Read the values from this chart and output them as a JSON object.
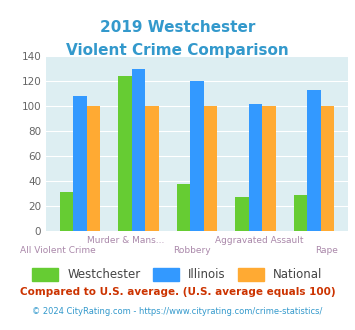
{
  "title_line1": "2019 Westchester",
  "title_line2": "Violent Crime Comparison",
  "title_color": "#3399cc",
  "top_labels": [
    [
      "Murder & Mans...",
      1
    ],
    [
      "Aggravated Assault",
      3
    ]
  ],
  "bottom_labels": [
    [
      "All Violent Crime",
      0
    ],
    [
      "Robbery",
      2
    ],
    [
      "Rape",
      4
    ]
  ],
  "westchester": [
    31,
    124,
    38,
    27,
    29
  ],
  "illinois": [
    108,
    130,
    120,
    102,
    113
  ],
  "national": [
    100,
    100,
    100,
    100,
    100
  ],
  "westchester_color": "#66cc33",
  "illinois_color": "#3399ff",
  "national_color": "#ffaa33",
  "bg_color": "#ddeef2",
  "ylim": [
    0,
    140
  ],
  "yticks": [
    0,
    20,
    40,
    60,
    80,
    100,
    120,
    140
  ],
  "legend_labels": [
    "Westchester",
    "Illinois",
    "National"
  ],
  "footnote1": "Compared to U.S. average. (U.S. average equals 100)",
  "footnote2": "© 2024 CityRating.com - https://www.cityrating.com/crime-statistics/",
  "footnote1_color": "#cc3300",
  "footnote2_color": "#3399cc"
}
